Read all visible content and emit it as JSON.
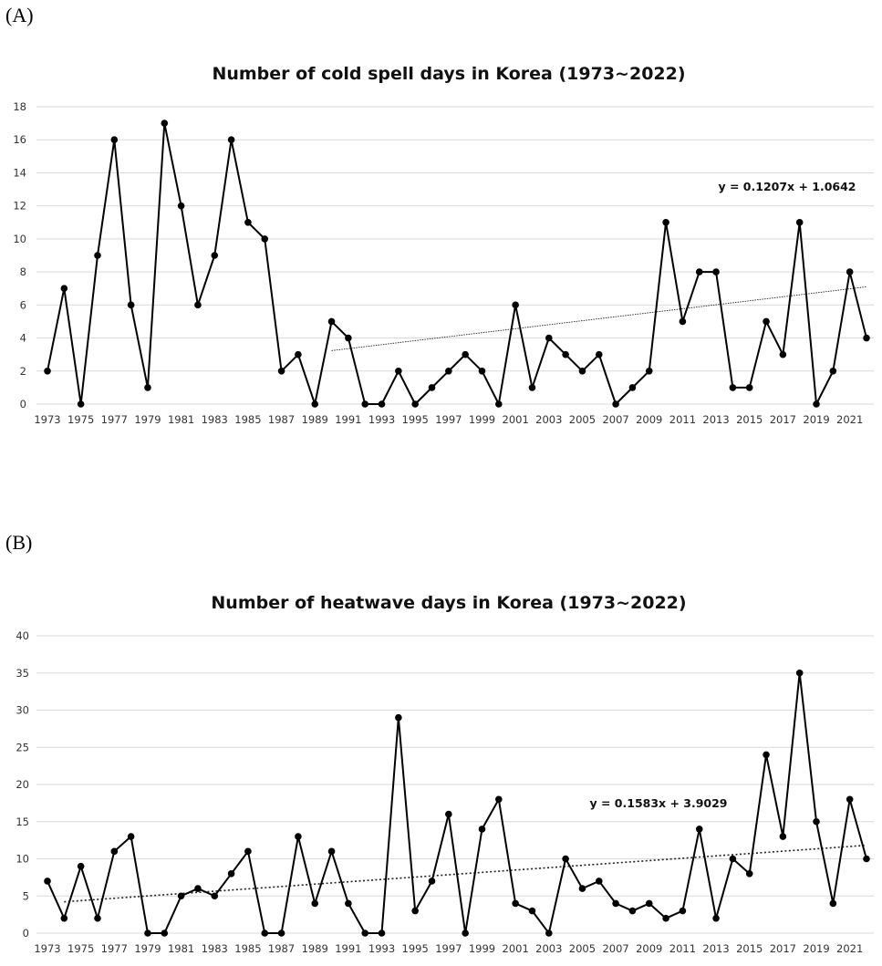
{
  "panels": [
    {
      "label": "(A)"
    },
    {
      "label": "(B)"
    }
  ],
  "chart_data": [
    {
      "type": "line",
      "title": "Number of cold spell days in Korea (1973~2022)",
      "xlabel": "",
      "ylabel": "",
      "ylim": [
        0,
        18
      ],
      "yticks": [
        0,
        2,
        4,
        6,
        8,
        10,
        12,
        14,
        16,
        18
      ],
      "x_tick_labels": [
        "1973",
        "1975",
        "1977",
        "1979",
        "1981",
        "1983",
        "1985",
        "1987",
        "1989",
        "1991",
        "1993",
        "1995",
        "1997",
        "1999",
        "2001",
        "2003",
        "2005",
        "2007",
        "2009",
        "2011",
        "2013",
        "2015",
        "2017",
        "2019",
        "2021"
      ],
      "x": [
        1973,
        1974,
        1975,
        1976,
        1977,
        1978,
        1979,
        1980,
        1981,
        1982,
        1983,
        1984,
        1985,
        1986,
        1987,
        1988,
        1989,
        1990,
        1991,
        1992,
        1993,
        1994,
        1995,
        1996,
        1997,
        1998,
        1999,
        2000,
        2001,
        2002,
        2003,
        2004,
        2005,
        2006,
        2007,
        2008,
        2009,
        2010,
        2011,
        2012,
        2013,
        2014,
        2015,
        2016,
        2017,
        2018,
        2019,
        2020,
        2021,
        2022
      ],
      "values": [
        2,
        7,
        0,
        9,
        16,
        6,
        1,
        17,
        12,
        6,
        9,
        16,
        11,
        10,
        2,
        3,
        0,
        5,
        4,
        0,
        0,
        2,
        0,
        1,
        2,
        3,
        2,
        0,
        6,
        1,
        4,
        3,
        2,
        3,
        0,
        1,
        2,
        11,
        5,
        8,
        8,
        1,
        1,
        5,
        3,
        11,
        0,
        2,
        8,
        4
      ],
      "trendline": {
        "equation": "y = 0.1207x + 1.0642",
        "slope": 0.1207,
        "intercept": 1.0642,
        "start_index": 17
      },
      "grid": true
    },
    {
      "type": "line",
      "title": "Number of heatwave days in Korea (1973~2022)",
      "xlabel": "",
      "ylabel": "",
      "ylim": [
        0,
        40
      ],
      "yticks": [
        0,
        5,
        10,
        15,
        20,
        25,
        30,
        35,
        40
      ],
      "x_tick_labels": [
        "1973",
        "1975",
        "1977",
        "1979",
        "1981",
        "1983",
        "1985",
        "1987",
        "1989",
        "1991",
        "1993",
        "1995",
        "1997",
        "1999",
        "2001",
        "2003",
        "2005",
        "2007",
        "2009",
        "2011",
        "2013",
        "2015",
        "2017",
        "2019",
        "2021"
      ],
      "x": [
        1973,
        1974,
        1975,
        1976,
        1977,
        1978,
        1979,
        1980,
        1981,
        1982,
        1983,
        1984,
        1985,
        1986,
        1987,
        1988,
        1989,
        1990,
        1991,
        1992,
        1993,
        1994,
        1995,
        1996,
        1997,
        1998,
        1999,
        2000,
        2001,
        2002,
        2003,
        2004,
        2005,
        2006,
        2007,
        2008,
        2009,
        2010,
        2011,
        2012,
        2013,
        2014,
        2015,
        2016,
        2017,
        2018,
        2019,
        2020,
        2021,
        2022
      ],
      "values": [
        7,
        2,
        9,
        2,
        11,
        13,
        0,
        0,
        5,
        6,
        5,
        8,
        11,
        0,
        0,
        13,
        4,
        11,
        4,
        0,
        0,
        29,
        3,
        7,
        16,
        0,
        14,
        18,
        4,
        3,
        0,
        10,
        6,
        7,
        4,
        3,
        4,
        2,
        3,
        14,
        2,
        10,
        8,
        24,
        13,
        35,
        15,
        4,
        18,
        10
      ],
      "trendline": {
        "equation": "y = 0.1583x + 3.9029",
        "slope": 0.1583,
        "intercept": 3.9029,
        "start_index": 1
      },
      "grid": true
    }
  ]
}
